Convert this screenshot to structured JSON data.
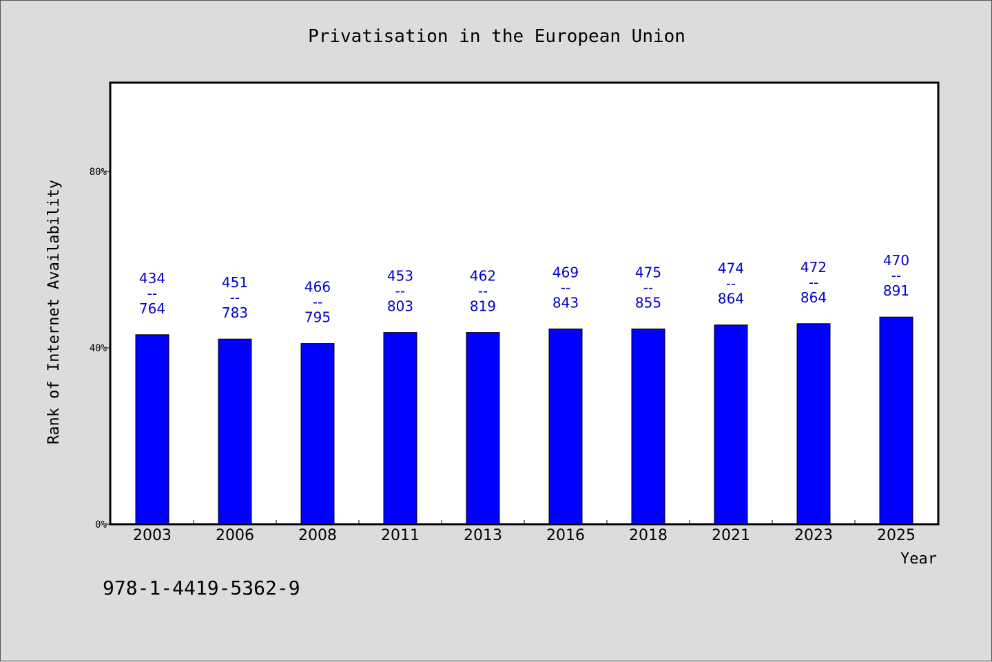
{
  "chart_data": {
    "type": "bar",
    "title": "Privatisation in the European Union",
    "xlabel": "Year",
    "ylabel": "Rank of Internet Availability",
    "categories": [
      "2003",
      "2006",
      "2008",
      "2011",
      "2013",
      "2016",
      "2018",
      "2021",
      "2023",
      "2025"
    ],
    "values": [
      43,
      42,
      41,
      43.5,
      43.5,
      44.3,
      44.3,
      45.2,
      45.5,
      47
    ],
    "data_labels": [
      [
        "434",
        "--",
        "764"
      ],
      [
        "451",
        "--",
        "783"
      ],
      [
        "466",
        "--",
        "795"
      ],
      [
        "453",
        "--",
        "803"
      ],
      [
        "462",
        "--",
        "819"
      ],
      [
        "469",
        "--",
        "843"
      ],
      [
        "475",
        "--",
        "855"
      ],
      [
        "474",
        "--",
        "864"
      ],
      [
        "472",
        "--",
        "864"
      ],
      [
        "470",
        "--",
        "891"
      ]
    ],
    "yticks": [
      0,
      40,
      80
    ],
    "ytick_labels": [
      "0%",
      "40%",
      "80%"
    ],
    "ylim": [
      0,
      100
    ],
    "grid": false,
    "legend": "none",
    "bar_color": "#0000ff",
    "label_color": "#0000cc"
  },
  "footnote": "978-1-4419-5362-9"
}
